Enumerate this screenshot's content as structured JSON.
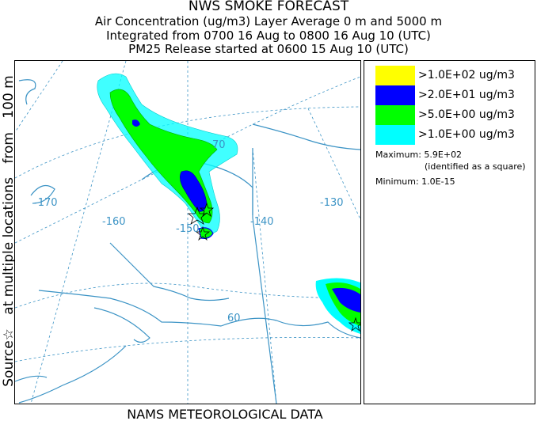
{
  "header": {
    "title": "NWS SMOKE FORECAST",
    "line2": "Air Concentration (ug/m3) Layer Average    0 m and  5000 m",
    "line3": "Integrated from 0700 16 Aug to 0800 16 Aug 10 (UTC)",
    "line4": "PM25 Release started at 0600 15 Aug 10 (UTC)"
  },
  "side_label": {
    "part1": "Source☆",
    "part2": "at multiple locations",
    "part3": "from",
    "part4": "100 m"
  },
  "legend": {
    "items": [
      {
        "label": ">1.0E+02 ug/m3",
        "color": "#ffff00"
      },
      {
        "label": ">2.0E+01 ug/m3",
        "color": "#0000ff"
      },
      {
        "label": ">5.0E+00 ug/m3",
        "color": "#00ff00"
      },
      {
        "label": ">1.0E+00 ug/m3",
        "color": "#00ffff"
      }
    ],
    "maximum": "Maximum: 5.9E+02",
    "maximum_note": "(identified as a square)",
    "minimum": "Minimum: 1.0E-15"
  },
  "map": {
    "longitude_labels": [
      "-170",
      "-160",
      "-150",
      "-140",
      "-130"
    ],
    "latitude_labels": [
      "70",
      "60"
    ],
    "line_color": "#3b93c5"
  },
  "footer": "NAMS METEOROLOGICAL DATA"
}
